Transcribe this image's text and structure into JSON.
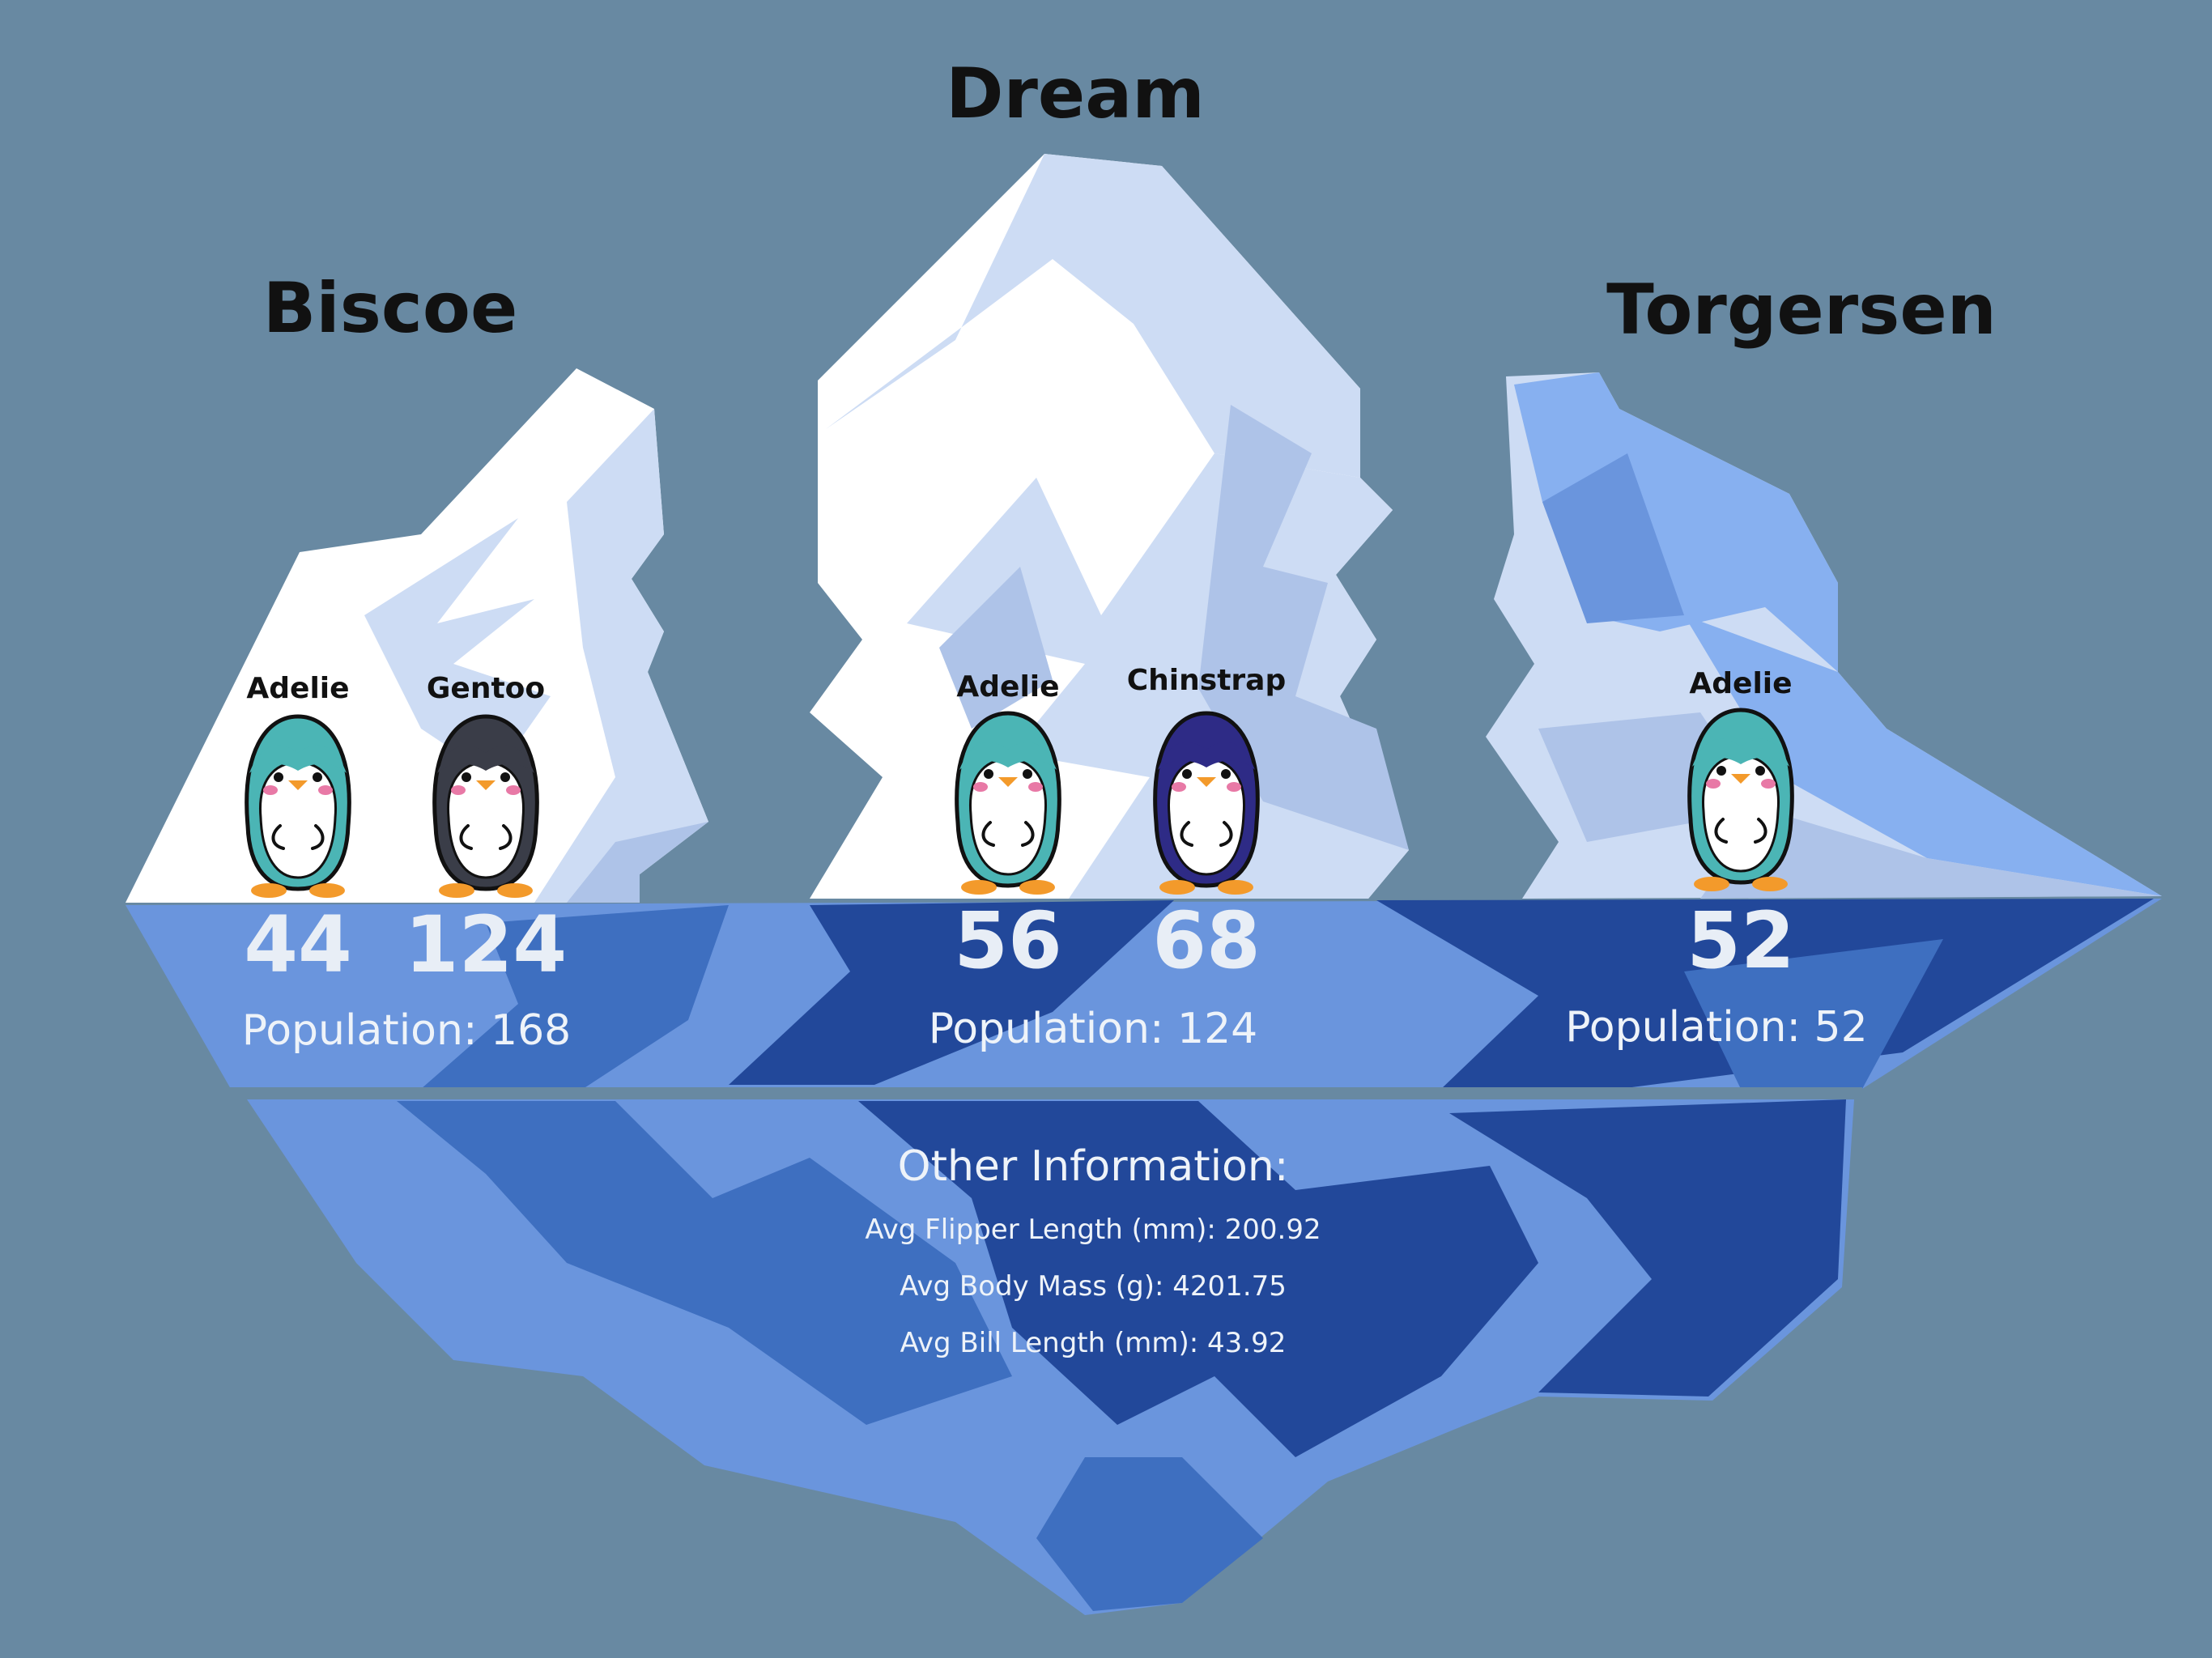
{
  "islands": [
    {
      "name": "Biscoe",
      "population_label": "Population: 168",
      "species": [
        {
          "name": "Adelie",
          "count": "44",
          "color": "#4bb5b5"
        },
        {
          "name": "Gentoo",
          "count": "124",
          "color": "#3a3d48"
        }
      ]
    },
    {
      "name": "Dream",
      "population_label": "Population: 124",
      "species": [
        {
          "name": "Adelie",
          "count": "56",
          "color": "#4bb5b5"
        },
        {
          "name": "Chinstrap",
          "count": "68",
          "color": "#2e2b86"
        }
      ]
    },
    {
      "name": "Torgersen",
      "population_label": "Population: 52",
      "species": [
        {
          "name": "Adelie",
          "count": "52",
          "color": "#4bb5b5"
        }
      ]
    }
  ],
  "other_info": {
    "title": "Other Information:",
    "lines": [
      "Avg Flipper Length (mm): 200.92",
      "Avg Body Mass (g): 4201.75",
      "Avg Bill Length (mm): 43.92"
    ]
  },
  "colors": {
    "background": "#6889a2",
    "ice_white": "#ffffff",
    "ice_light": "#cddcf4",
    "ice_mid": "#aec3e8",
    "water_light": "#6a95dd",
    "water_mid": "#3e6fc0",
    "water_dark": "#22489a",
    "text_dark": "#111111",
    "text_light": "#eef3f9"
  }
}
